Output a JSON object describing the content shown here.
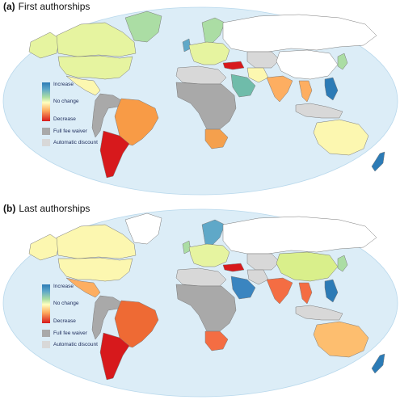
{
  "panels": [
    {
      "id": "a",
      "label": "(a)",
      "title": "First authorships",
      "colors": {
        "usa": "#e6f4a0",
        "canada": "#e6f4a0",
        "greenland": "#abdda4",
        "alaska": "#e6f4a0",
        "mexico": "#fcf7b0",
        "brazil": "#f89b46",
        "argentina": "#d7191c",
        "scandinavia": "#abdda4",
        "uk": "#5fa8c8",
        "europe": "#e6f4a0",
        "russia": "#ffffff",
        "turkey": "#d7191c",
        "saudi": "#6fbcaa",
        "iran": "#fcf7b0",
        "india": "#fdae61",
        "china": "#ffffff",
        "japan": "#abdda4",
        "seasia": "#fdae61",
        "philippines": "#2c7bb6",
        "australia": "#fcf7b0",
        "nz": "#2c7bb6",
        "southafrica": "#f4a04d",
        "africa": "#a9a9a9",
        "andes": "#a9a9a9",
        "centralasia": "#d8d8d8",
        "indonesia": "#d8d8d8",
        "northafrica": "#d8d8d8"
      }
    },
    {
      "id": "b",
      "label": "(b)",
      "title": "Last authorships",
      "colors": {
        "usa": "#fcf7b0",
        "canada": "#fcf7b0",
        "greenland": "#ffffff",
        "alaska": "#fcf7b0",
        "mexico": "#fdae61",
        "brazil": "#ee6a34",
        "argentina": "#d7191c",
        "scandinavia": "#5fa8c8",
        "uk": "#abdda4",
        "europe": "#e6f4a0",
        "russia": "#ffffff",
        "turkey": "#d7191c",
        "saudi": "#3a85c0",
        "iran": "#d8d8d8",
        "india": "#f46d43",
        "china": "#d9ef8b",
        "japan": "#abdda4",
        "seasia": "#f46d43",
        "philippines": "#2c7bb6",
        "australia": "#fdbe6f",
        "nz": "#2c7bb6",
        "southafrica": "#f46d43",
        "africa": "#a9a9a9",
        "andes": "#a9a9a9",
        "centralasia": "#d8d8d8",
        "indonesia": "#d8d8d8",
        "northafrica": "#d8d8d8"
      }
    }
  ],
  "legend": {
    "increase": "Increase",
    "no_change": "No change",
    "decrease": "Decrease",
    "full_fee_waiver": "Full fee waiver",
    "automatic_discount": "Automatic discount",
    "full_fee_waiver_color": "#a9a9a9",
    "automatic_discount_color": "#d8d8d8"
  },
  "style": {
    "ocean": "#dcedf7",
    "border": "#7a7a7a"
  }
}
